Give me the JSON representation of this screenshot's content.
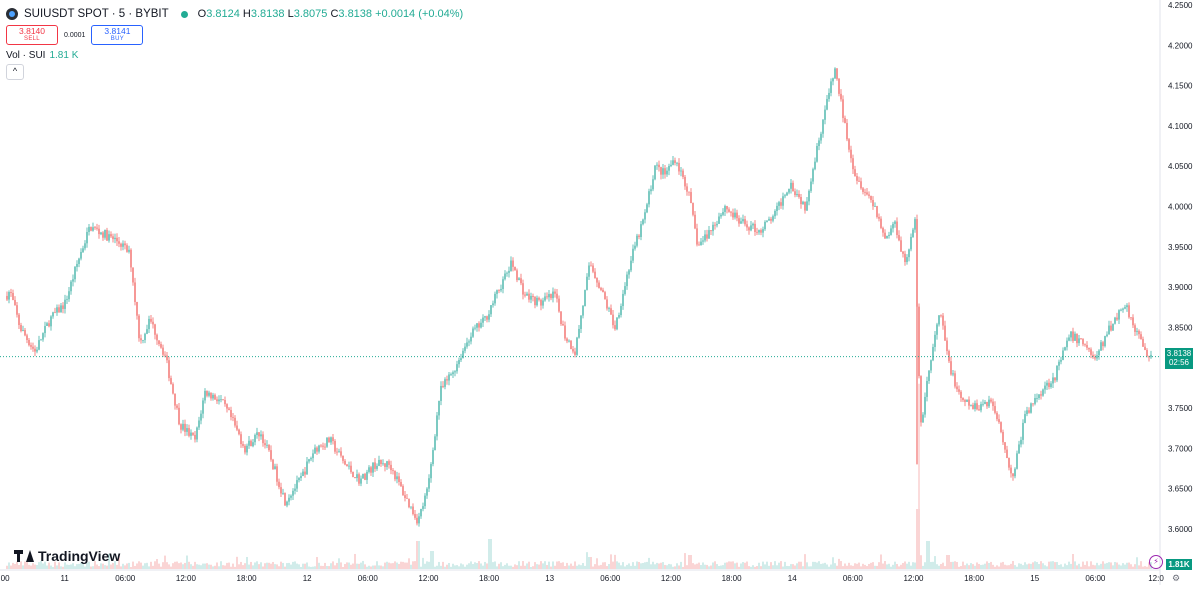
{
  "header": {
    "symbol_title": "SUIUSDT SPOT · 5 · BYBIT",
    "open_label": "O",
    "open": "3.8124",
    "high_label": "H",
    "high": "3.8138",
    "low_label": "L",
    "low": "3.8075",
    "close_label": "C",
    "close": "3.8138",
    "change": "+0.0014 (+0.04%)"
  },
  "trade": {
    "sell_price": "3.8140",
    "sell_label": "SELL",
    "spread": "0.0001",
    "buy_price": "3.8141",
    "buy_label": "BUY"
  },
  "volume_legend": {
    "label": "Vol · SUI",
    "value": "1.81 K",
    "collapse_icon": "chevron-up-icon"
  },
  "brand": {
    "name": "TradingView"
  },
  "price_label": {
    "price": "3.8138",
    "countdown": "02:56"
  },
  "volume_label": "1.81K",
  "icons": {
    "bolt": "lightning-icon",
    "settings": "gear-icon"
  },
  "colors": {
    "up": "#26a69a",
    "down": "#ef5350",
    "badge": "#089981",
    "last_price_line": "#22ab94"
  },
  "chart_data": {
    "type": "candlestick",
    "y_axis": {
      "ticks": [
        "4.2500",
        "4.2000",
        "4.1500",
        "4.1000",
        "4.0500",
        "4.0000",
        "3.9500",
        "3.9000",
        "3.8500",
        "3.7500",
        "3.7000",
        "3.6500",
        "3.6000"
      ],
      "range": [
        3.58,
        4.25
      ]
    },
    "x_axis": {
      "ticks": [
        ":00",
        "11",
        "06:00",
        "12:00",
        "18:00",
        "12",
        "06:00",
        "12:00",
        "18:00",
        "13",
        "06:00",
        "12:00",
        "18:00",
        "14",
        "06:00",
        "12:00",
        "18:00",
        "15",
        "06:00",
        "12:0"
      ]
    },
    "last_price": 3.8138,
    "price_path_anchors": [
      [
        0,
        3.88
      ],
      [
        10,
        3.895
      ],
      [
        20,
        3.85
      ],
      [
        35,
        3.82
      ],
      [
        50,
        3.86
      ],
      [
        65,
        3.88
      ],
      [
        80,
        3.94
      ],
      [
        90,
        3.975
      ],
      [
        105,
        3.965
      ],
      [
        120,
        3.955
      ],
      [
        130,
        3.94
      ],
      [
        140,
        3.83
      ],
      [
        150,
        3.86
      ],
      [
        165,
        3.815
      ],
      [
        180,
        3.73
      ],
      [
        195,
        3.71
      ],
      [
        205,
        3.77
      ],
      [
        220,
        3.76
      ],
      [
        230,
        3.74
      ],
      [
        245,
        3.7
      ],
      [
        260,
        3.72
      ],
      [
        270,
        3.69
      ],
      [
        285,
        3.635
      ],
      [
        300,
        3.66
      ],
      [
        315,
        3.7
      ],
      [
        330,
        3.71
      ],
      [
        345,
        3.68
      ],
      [
        360,
        3.66
      ],
      [
        375,
        3.68
      ],
      [
        390,
        3.68
      ],
      [
        405,
        3.64
      ],
      [
        418,
        3.61
      ],
      [
        428,
        3.65
      ],
      [
        440,
        3.77
      ],
      [
        455,
        3.8
      ],
      [
        470,
        3.84
      ],
      [
        485,
        3.86
      ],
      [
        500,
        3.9
      ],
      [
        512,
        3.93
      ],
      [
        525,
        3.89
      ],
      [
        540,
        3.88
      ],
      [
        555,
        3.89
      ],
      [
        565,
        3.84
      ],
      [
        575,
        3.82
      ],
      [
        590,
        3.93
      ],
      [
        600,
        3.9
      ],
      [
        615,
        3.85
      ],
      [
        630,
        3.93
      ],
      [
        645,
        3.99
      ],
      [
        655,
        4.05
      ],
      [
        665,
        4.04
      ],
      [
        675,
        4.06
      ],
      [
        688,
        4.02
      ],
      [
        698,
        3.95
      ],
      [
        710,
        3.97
      ],
      [
        725,
        4.0
      ],
      [
        740,
        3.98
      ],
      [
        760,
        3.97
      ],
      [
        775,
        3.99
      ],
      [
        790,
        4.03
      ],
      [
        805,
        4.0
      ],
      [
        815,
        4.06
      ],
      [
        825,
        4.12
      ],
      [
        835,
        4.17
      ],
      [
        845,
        4.1
      ],
      [
        855,
        4.04
      ],
      [
        865,
        4.02
      ],
      [
        875,
        4.0
      ],
      [
        885,
        3.96
      ],
      [
        895,
        3.98
      ],
      [
        905,
        3.93
      ],
      [
        915,
        3.98
      ],
      [
        918,
        3.82
      ],
      [
        921,
        3.73
      ],
      [
        928,
        3.79
      ],
      [
        940,
        3.87
      ],
      [
        948,
        3.81
      ],
      [
        960,
        3.76
      ],
      [
        975,
        3.75
      ],
      [
        990,
        3.76
      ],
      [
        1000,
        3.73
      ],
      [
        1012,
        3.66
      ],
      [
        1025,
        3.74
      ],
      [
        1040,
        3.77
      ],
      [
        1055,
        3.79
      ],
      [
        1070,
        3.84
      ],
      [
        1085,
        3.83
      ],
      [
        1095,
        3.81
      ],
      [
        1110,
        3.85
      ],
      [
        1125,
        3.88
      ],
      [
        1135,
        3.85
      ],
      [
        1145,
        3.82
      ],
      [
        1153,
        3.8138
      ]
    ],
    "volume_spikes": [
      [
        418,
        28
      ],
      [
        432,
        18
      ],
      [
        490,
        30
      ],
      [
        590,
        12
      ],
      [
        690,
        14
      ],
      [
        918,
        60
      ],
      [
        928,
        28
      ],
      [
        948,
        14
      ]
    ]
  }
}
